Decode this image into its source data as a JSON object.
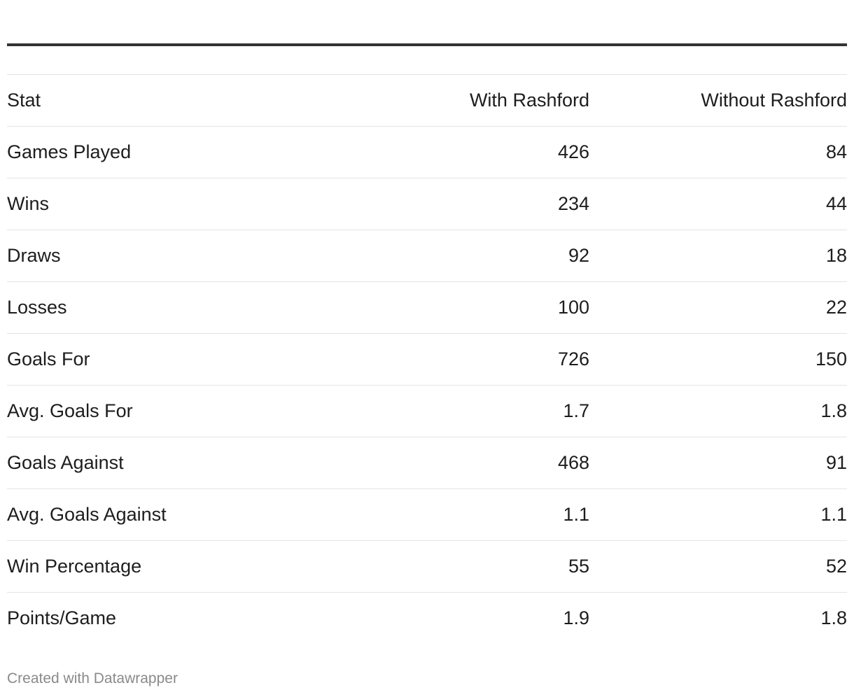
{
  "chart_data": {
    "type": "table",
    "columns": [
      "Stat",
      "With Rashford",
      "Without Rashford"
    ],
    "rows": [
      {
        "stat": "Games Played",
        "with": "426",
        "without": "84"
      },
      {
        "stat": "Wins",
        "with": "234",
        "without": "44"
      },
      {
        "stat": "Draws",
        "with": "92",
        "without": "18"
      },
      {
        "stat": "Losses",
        "with": "100",
        "without": "22"
      },
      {
        "stat": "Goals For",
        "with": "726",
        "without": "150"
      },
      {
        "stat": "Avg. Goals For",
        "with": "1.7",
        "without": "1.8"
      },
      {
        "stat": "Goals Against",
        "with": "468",
        "without": "91"
      },
      {
        "stat": "Avg. Goals Against",
        "with": "1.1",
        "without": "1.1"
      },
      {
        "stat": "Win Percentage",
        "with": "55",
        "without": "52"
      },
      {
        "stat": "Points/Game",
        "with": "1.9",
        "without": "1.8"
      }
    ]
  },
  "footer": {
    "credit": "Created with Datawrapper"
  },
  "colors": {
    "text": "#1d1d1d",
    "rule": "#333333",
    "row_divider": "#e4e4e4",
    "footer_text": "#8a8a8a"
  }
}
